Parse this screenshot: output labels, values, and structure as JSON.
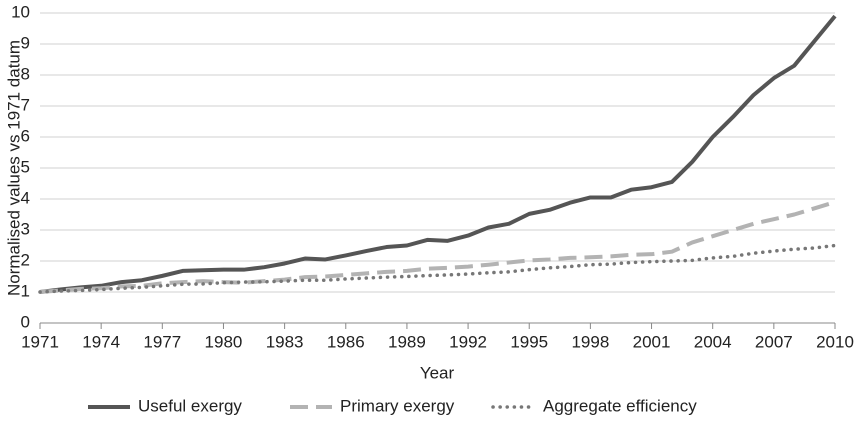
{
  "chart_data": {
    "type": "line",
    "x_label": "Year",
    "y_label": "Normalised values vs 1971 datum",
    "x": [
      1971,
      1972,
      1973,
      1974,
      1975,
      1976,
      1977,
      1978,
      1979,
      1980,
      1981,
      1982,
      1983,
      1984,
      1985,
      1986,
      1987,
      1988,
      1989,
      1990,
      1991,
      1992,
      1993,
      1994,
      1995,
      1996,
      1997,
      1998,
      1999,
      2000,
      2001,
      2002,
      2003,
      2004,
      2005,
      2006,
      2007,
      2008,
      2009,
      2010
    ],
    "xlim": [
      1971,
      2010
    ],
    "xticks": [
      1971,
      1974,
      1977,
      1980,
      1983,
      1986,
      1989,
      1992,
      1995,
      1998,
      2001,
      2004,
      2007,
      2010
    ],
    "ylim": [
      0,
      10
    ],
    "yticks": [
      0,
      1,
      2,
      3,
      4,
      5,
      6,
      7,
      8,
      9,
      10
    ],
    "grid": true,
    "legend": "bottom",
    "series": [
      {
        "name": "Useful exergy",
        "color": "#555555",
        "line_style": "solid",
        "values": [
          1.0,
          1.08,
          1.15,
          1.2,
          1.32,
          1.38,
          1.52,
          1.68,
          1.7,
          1.72,
          1.72,
          1.8,
          1.92,
          2.08,
          2.05,
          2.18,
          2.32,
          2.45,
          2.5,
          2.68,
          2.65,
          2.82,
          3.08,
          3.2,
          3.52,
          3.65,
          3.88,
          4.05,
          4.05,
          4.3,
          4.38,
          4.55,
          5.2,
          6.0,
          6.65,
          7.35,
          7.9,
          8.3,
          9.1,
          9.9
        ]
      },
      {
        "name": "Primary exergy",
        "color": "#b3b3b3",
        "line_style": "dashed",
        "values": [
          1.0,
          1.05,
          1.1,
          1.12,
          1.18,
          1.2,
          1.28,
          1.32,
          1.35,
          1.32,
          1.3,
          1.35,
          1.4,
          1.48,
          1.5,
          1.55,
          1.6,
          1.65,
          1.68,
          1.75,
          1.78,
          1.82,
          1.88,
          1.95,
          2.02,
          2.05,
          2.1,
          2.12,
          2.15,
          2.2,
          2.22,
          2.3,
          2.6,
          2.8,
          3.0,
          3.2,
          3.35,
          3.5,
          3.7,
          3.9
        ]
      },
      {
        "name": "Aggregate efficiency",
        "color": "#777777",
        "line_style": "dotted",
        "values": [
          1.0,
          1.03,
          1.05,
          1.08,
          1.12,
          1.15,
          1.2,
          1.25,
          1.26,
          1.3,
          1.32,
          1.33,
          1.35,
          1.38,
          1.38,
          1.42,
          1.45,
          1.48,
          1.5,
          1.53,
          1.55,
          1.58,
          1.62,
          1.65,
          1.72,
          1.78,
          1.82,
          1.88,
          1.9,
          1.95,
          1.98,
          2.0,
          2.02,
          2.1,
          2.15,
          2.25,
          2.32,
          2.38,
          2.42,
          2.5
        ]
      }
    ]
  }
}
